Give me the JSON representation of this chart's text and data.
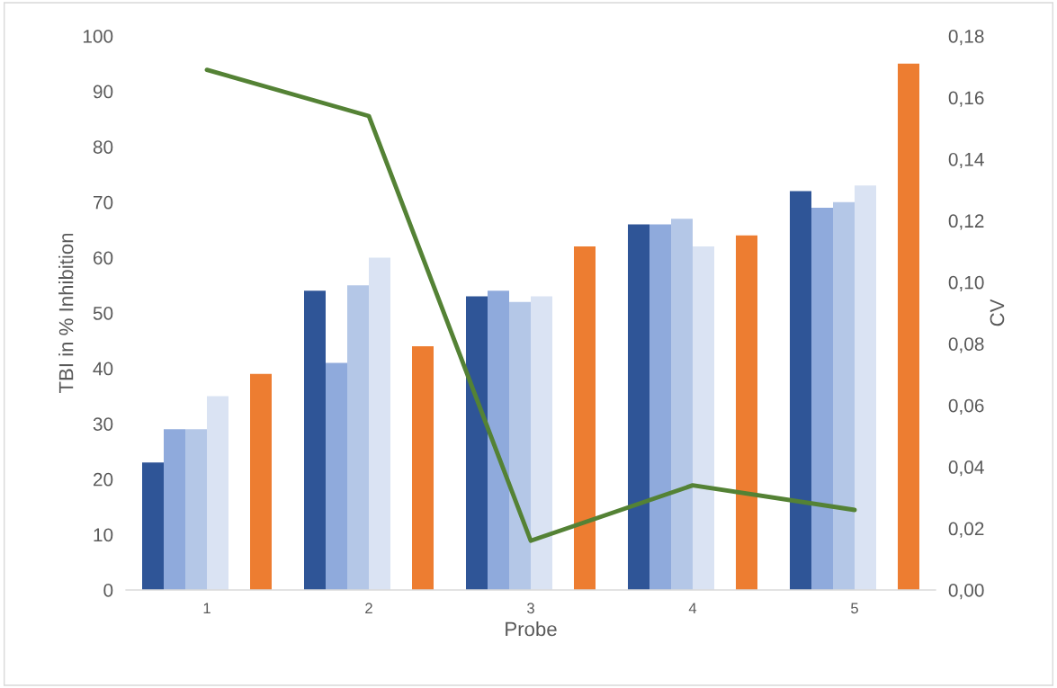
{
  "chart_data": {
    "type": "bar",
    "xlabel": "Probe",
    "ylabel": "TBI in % Inhibition",
    "y2label": "CV",
    "categories": [
      "1",
      "2",
      "3",
      "4",
      "5"
    ],
    "series": [
      {
        "color": "#2f5597",
        "values": [
          23,
          54,
          53,
          66,
          72
        ]
      },
      {
        "color": "#8faadc",
        "values": [
          29,
          41,
          54,
          66,
          69
        ]
      },
      {
        "color": "#b4c7e7",
        "values": [
          29,
          55,
          52,
          67,
          70
        ]
      },
      {
        "color": "#dae3f3",
        "values": [
          35,
          60,
          53,
          62,
          73
        ]
      },
      {
        "values": [
          null,
          null,
          null,
          null,
          null
        ]
      },
      {
        "color": "#ed7d31",
        "values": [
          39,
          44,
          62,
          64,
          95
        ]
      },
      {
        "type": "line",
        "axis": "y2",
        "color": "#548235",
        "values": [
          0.169,
          0.154,
          0.016,
          0.034,
          0.026
        ]
      }
    ],
    "ylim": [
      0,
      100
    ],
    "yticks": [
      0,
      10,
      20,
      30,
      40,
      50,
      60,
      70,
      80,
      90,
      100
    ],
    "y2lim": [
      0,
      0.18
    ],
    "y2ticks": [
      {
        "value": 0,
        "label": "0,00"
      },
      {
        "value": 0.02,
        "label": "0,02"
      },
      {
        "value": 0.04,
        "label": "0,04"
      },
      {
        "value": 0.06,
        "label": "0,06"
      },
      {
        "value": 0.08,
        "label": "0,08"
      },
      {
        "value": 0.1,
        "label": "0,10"
      },
      {
        "value": 0.12,
        "label": "0,12"
      },
      {
        "value": 0.14,
        "label": "0,14"
      },
      {
        "value": 0.16,
        "label": "0,16"
      },
      {
        "value": 0.18,
        "label": "0,18"
      }
    ],
    "grid": false,
    "legend": false
  }
}
